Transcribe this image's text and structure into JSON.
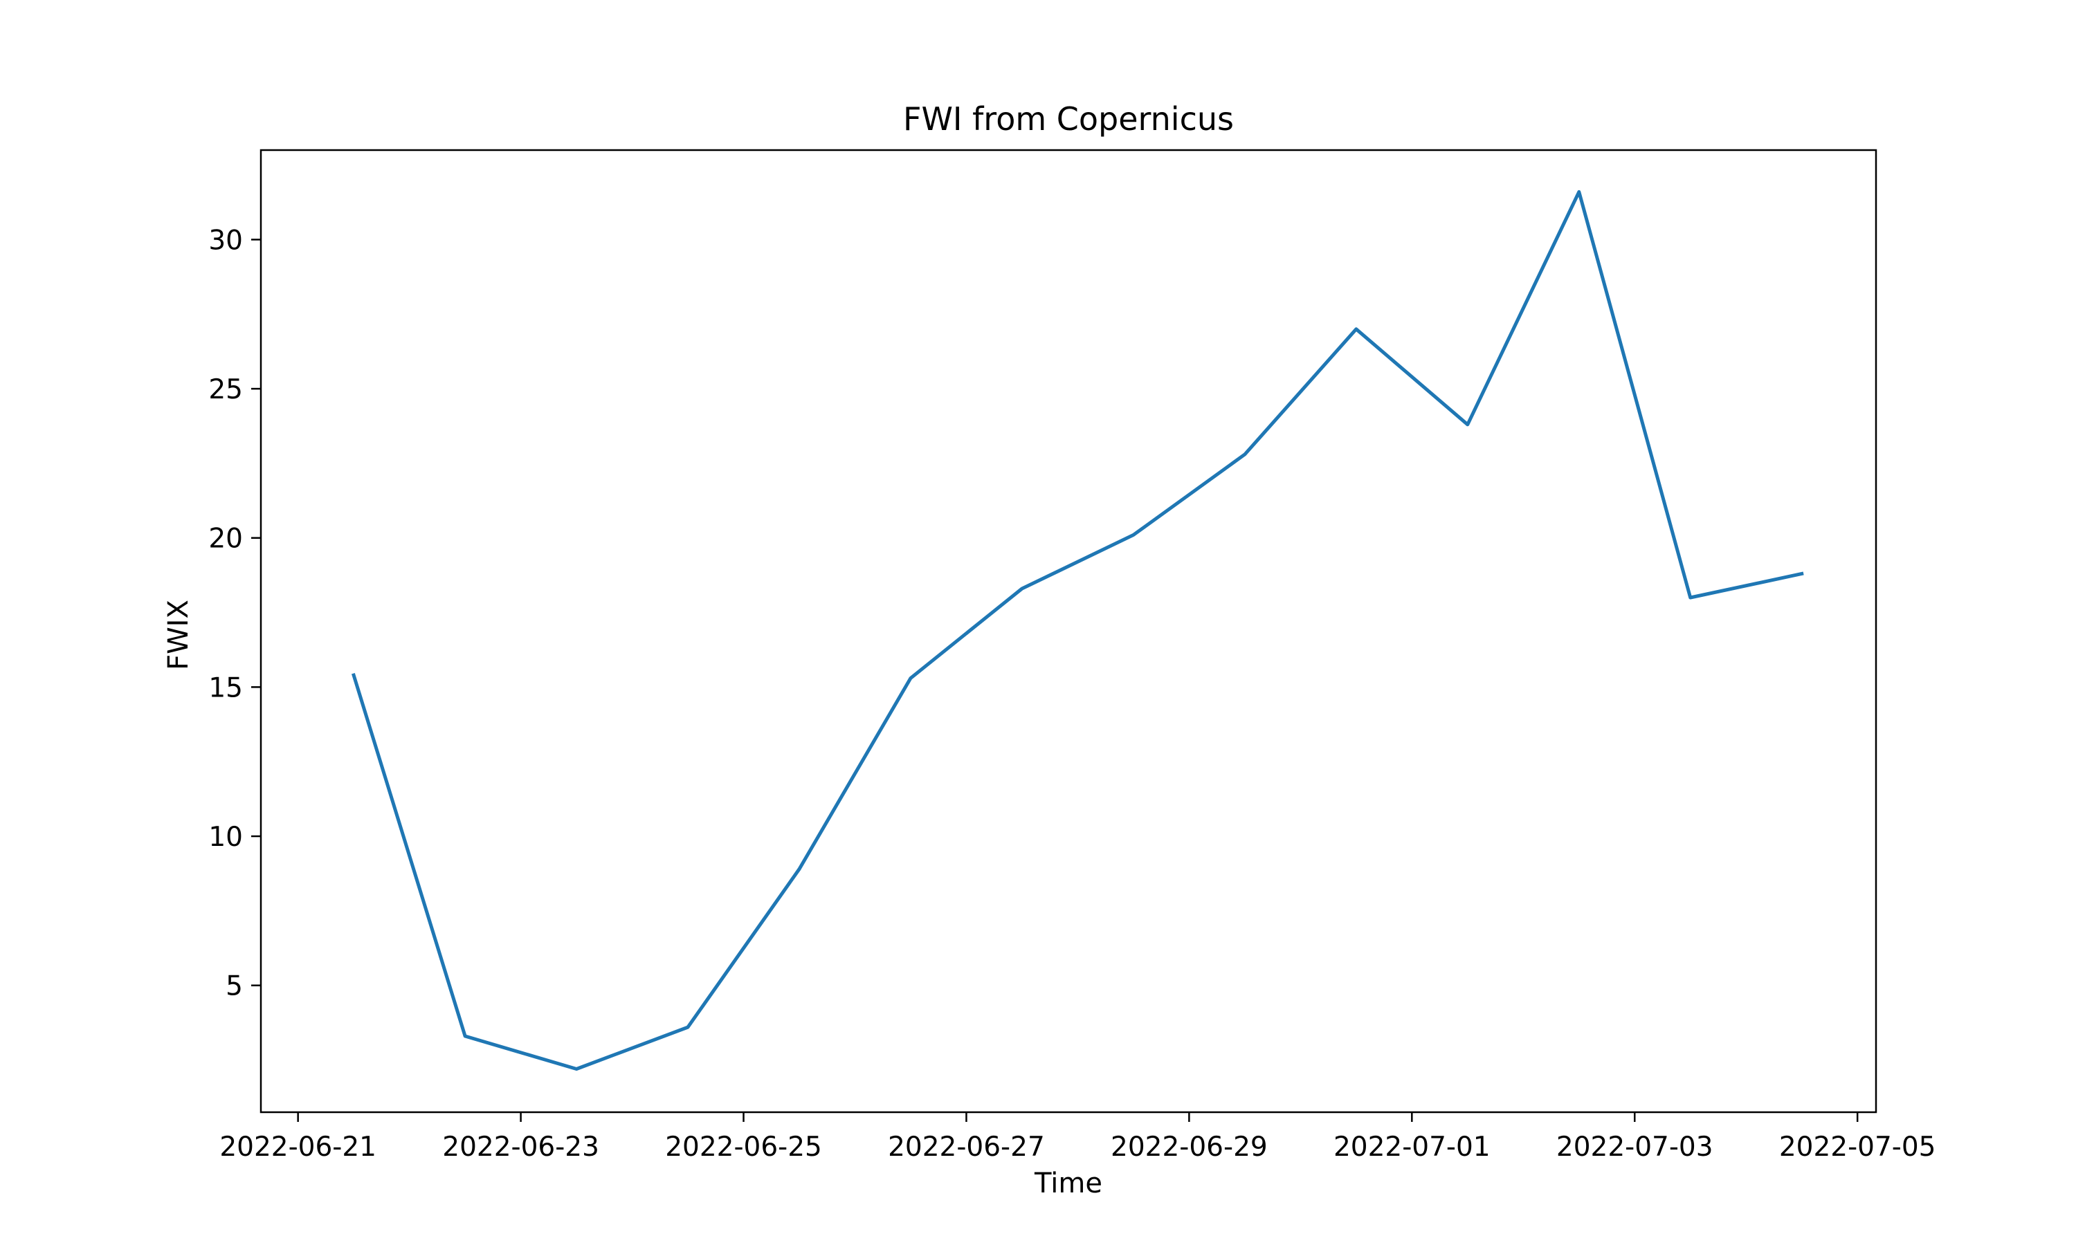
{
  "chart_data": {
    "type": "line",
    "title": "FWI from Copernicus",
    "xlabel": "Time",
    "ylabel": "FWIX",
    "x_axis_type": "date",
    "xlim": [
      "2022-06-20T16:00",
      "2022-07-05T04:00"
    ],
    "ylim": [
      0.75,
      33.0
    ],
    "grid": false,
    "legend": "none",
    "line_color": "#1f77b4",
    "x_ticks": [
      "2022-06-21",
      "2022-06-23",
      "2022-06-25",
      "2022-06-27",
      "2022-06-29",
      "2022-07-01",
      "2022-07-03",
      "2022-07-05"
    ],
    "y_ticks": [
      5,
      10,
      15,
      20,
      25,
      30
    ],
    "series": [
      {
        "x": [
          "2022-06-21T12:00",
          "2022-06-22T12:00",
          "2022-06-23T12:00",
          "2022-06-24T12:00",
          "2022-06-25T12:00",
          "2022-06-26T12:00",
          "2022-06-27T12:00",
          "2022-06-28T12:00",
          "2022-06-29T12:00",
          "2022-06-30T12:00",
          "2022-07-01T12:00",
          "2022-07-02T12:00",
          "2022-07-03T12:00",
          "2022-07-04T12:00"
        ],
        "y": [
          15.4,
          3.3,
          2.2,
          3.6,
          8.9,
          15.3,
          18.3,
          20.1,
          22.8,
          27.0,
          23.8,
          31.6,
          18.0,
          18.8
        ]
      }
    ]
  }
}
